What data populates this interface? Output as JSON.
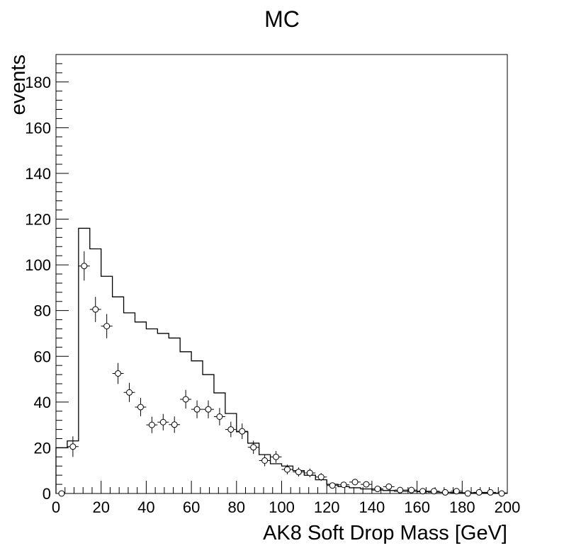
{
  "chart_data": {
    "type": "histogram",
    "title": "MC",
    "xlabel": "AK8 Soft Drop Mass [GeV]",
    "ylabel": "events",
    "xlim": [
      0,
      200
    ],
    "ylim": [
      0,
      192
    ],
    "xticks": [
      "0",
      "20",
      "40",
      "60",
      "80",
      "100",
      "120",
      "140",
      "160",
      "180",
      "200"
    ],
    "yticks": [
      "0",
      "20",
      "40",
      "60",
      "80",
      "100",
      "120",
      "140",
      "160",
      "180"
    ],
    "bin_edges": [
      0,
      5,
      10,
      15,
      20,
      25,
      30,
      35,
      40,
      45,
      50,
      55,
      60,
      65,
      70,
      75,
      80,
      85,
      90,
      95,
      100,
      105,
      110,
      115,
      120,
      125,
      130,
      135,
      140,
      145,
      150,
      155,
      160,
      165,
      170,
      175,
      180,
      185,
      190,
      195,
      200
    ],
    "series": [
      {
        "style": "step-histogram",
        "color": "#000000",
        "values": [
          20,
          23,
          116,
          107,
          95,
          86,
          79,
          75,
          72,
          70,
          68,
          62,
          58,
          52,
          44,
          35,
          27,
          22,
          17,
          13,
          12,
          10,
          8,
          6,
          4,
          3,
          2.5,
          2,
          1.5,
          1.3,
          1,
          1,
          0.8,
          0.6,
          0.5,
          0.4,
          0.3,
          0.3,
          0.2,
          0.2
        ]
      },
      {
        "style": "points-with-errors",
        "color": "#000000",
        "marker": "open-circle",
        "values": [
          0,
          20.5,
          99.5,
          80.5,
          73.2,
          52.5,
          44.2,
          37.8,
          30,
          31.2,
          30.1,
          41.2,
          36.8,
          36.8,
          33.6,
          28,
          27.2,
          20.2,
          14.4,
          16,
          10.5,
          9.4,
          9,
          7.2,
          3.5,
          3.8,
          5,
          4,
          2,
          3,
          1.5,
          1.5,
          1,
          1,
          0.5,
          1,
          0,
          0.5,
          0.5,
          0
        ],
        "errors": [
          0,
          4.5,
          6.4,
          5.5,
          5.3,
          4.6,
          4.2,
          4.0,
          3.6,
          3.6,
          3.6,
          4.1,
          3.9,
          3.9,
          3.8,
          3.4,
          3.4,
          2.9,
          2.5,
          2.6,
          2.1,
          2.0,
          1.9,
          1.7,
          1.2,
          1.3,
          1.4,
          1.3,
          0.9,
          1.1,
          0.8,
          0.8,
          0.6,
          0.6,
          0.4,
          0.6,
          0,
          0.4,
          0.4,
          0
        ]
      }
    ]
  }
}
